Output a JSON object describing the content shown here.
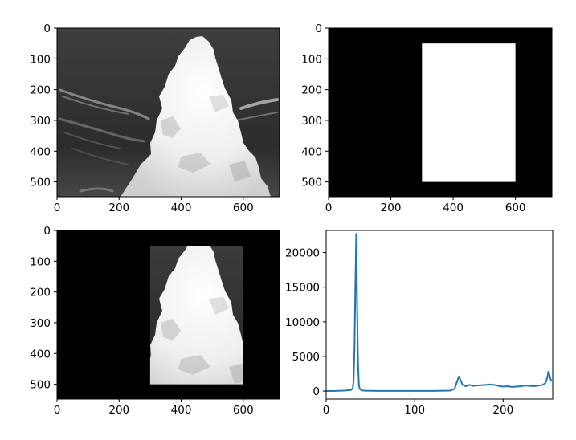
{
  "chart_data": [
    {
      "type": "image",
      "content": "grayscale photograph of a cumulus cloud against a dark sky",
      "xlim": [
        0,
        717
      ],
      "ylim": [
        548,
        0
      ],
      "xticks": [
        "0",
        "200",
        "400",
        "600"
      ],
      "yticks": [
        "0",
        "100",
        "200",
        "300",
        "400",
        "500"
      ]
    },
    {
      "type": "image",
      "content": "binary mask: white rectangle on black background",
      "mask_rect": {
        "x0": 300,
        "x1": 600,
        "y0": 50,
        "y1": 500
      },
      "xlim": [
        0,
        717
      ],
      "ylim": [
        548,
        0
      ],
      "xticks": [
        "0",
        "200",
        "400",
        "600"
      ],
      "yticks": [
        "0",
        "100",
        "200",
        "300",
        "400",
        "500"
      ]
    },
    {
      "type": "image",
      "content": "cloud photograph with mask applied (only the rectangle region visible)",
      "mask_rect": {
        "x0": 300,
        "x1": 600,
        "y0": 50,
        "y1": 500
      },
      "xlim": [
        0,
        717
      ],
      "ylim": [
        548,
        0
      ],
      "xticks": [
        "0",
        "200",
        "400",
        "600"
      ],
      "yticks": [
        "0",
        "100",
        "200",
        "300",
        "400",
        "500"
      ]
    },
    {
      "type": "line",
      "xlim": [
        0,
        256
      ],
      "ylim": [
        -1150,
        23200
      ],
      "xticks": [
        0,
        100,
        200
      ],
      "yticks": [
        0,
        5000,
        10000,
        15000,
        20000
      ],
      "ytick_labels": [
        "0",
        "5000",
        "10000",
        "15000",
        "20000"
      ],
      "color": "#1f77b4",
      "series": [
        {
          "x": [
            0,
            10,
            20,
            28,
            30,
            31,
            32,
            33,
            34,
            35,
            36,
            37,
            38,
            40,
            45,
            60,
            80,
            100,
            120,
            140,
            145,
            148,
            150,
            152,
            154,
            158,
            162,
            166,
            170,
            175,
            180,
            185,
            190,
            195,
            200,
            205,
            210,
            215,
            220,
            225,
            230,
            235,
            240,
            245,
            248,
            250,
            251,
            252,
            253,
            254,
            255
          ],
          "y": [
            10,
            20,
            60,
            150,
            400,
            1500,
            6000,
            15000,
            22700,
            12000,
            4000,
            900,
            300,
            100,
            50,
            30,
            20,
            20,
            25,
            60,
            300,
            1400,
            2100,
            1600,
            900,
            700,
            900,
            750,
            800,
            850,
            900,
            950,
            900,
            750,
            650,
            700,
            600,
            650,
            700,
            800,
            750,
            700,
            800,
            900,
            1200,
            2000,
            2800,
            2600,
            2000,
            1600,
            1400
          ]
        }
      ]
    }
  ]
}
